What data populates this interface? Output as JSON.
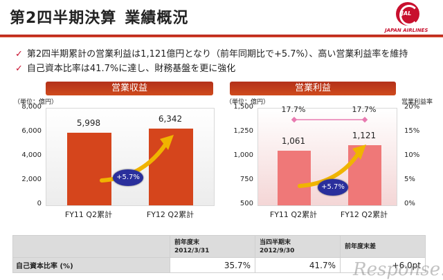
{
  "header": {
    "title_part1": "第2四半期決算",
    "title_part2": "業績概況",
    "logo_text": "JAPAN AIRLINES",
    "logo_mark_text": "JAL"
  },
  "bullets": [
    "第2四半期累計の営業利益は1,121億円となり（前年同期比で+5.7%）、高い営業利益率を維持",
    "自己資本比率は41.7%に達し、財務基盤を更に強化"
  ],
  "chart_data": [
    {
      "type": "bar",
      "title": "営業収益",
      "unit_label": "（単位：億円）",
      "categories": [
        "FY11 Q2累計",
        "FY12 Q2累計"
      ],
      "values": [
        5998,
        6342
      ],
      "value_labels": [
        "5,998",
        "6,342"
      ],
      "ylim": [
        0,
        8000
      ],
      "y_ticks": [
        "8,000",
        "6,000",
        "4,000",
        "2,000",
        "0"
      ],
      "growth_label": "+5.7%",
      "bar_color": "#d5451c"
    },
    {
      "type": "bar",
      "title": "営業利益",
      "unit_label": "（単位：億円）",
      "right_axis_label": "営業利益率",
      "categories": [
        "FY11 Q2累計",
        "FY12 Q2累計"
      ],
      "values": [
        1061,
        1121
      ],
      "value_labels": [
        "1,061",
        "1,121"
      ],
      "ylim": [
        500,
        1500
      ],
      "y_ticks": [
        "1,500",
        "1,250",
        "1,000",
        "750",
        "500"
      ],
      "margin_series": {
        "values": [
          17.7,
          17.7
        ],
        "labels": [
          "17.7%",
          "17.7%"
        ]
      },
      "y2lim": [
        0,
        20
      ],
      "y2_ticks": [
        "20%",
        "15%",
        "10%",
        "5%",
        "0%"
      ],
      "growth_label": "+5.7%",
      "bar_color": "#ef7878",
      "line_color": "#e87ab0"
    }
  ],
  "table": {
    "headers": [
      {
        "line1": "前年度末",
        "line2": "2012/3/31"
      },
      {
        "line1": "当四半期末",
        "line2": "2012/9/30"
      },
      {
        "line1": "前年度末差",
        "line2": ""
      }
    ],
    "row_label": "自己資本比率 (%)",
    "values": [
      "35.7%",
      "41.7%",
      "+6.0pt"
    ]
  },
  "watermark": "Response."
}
